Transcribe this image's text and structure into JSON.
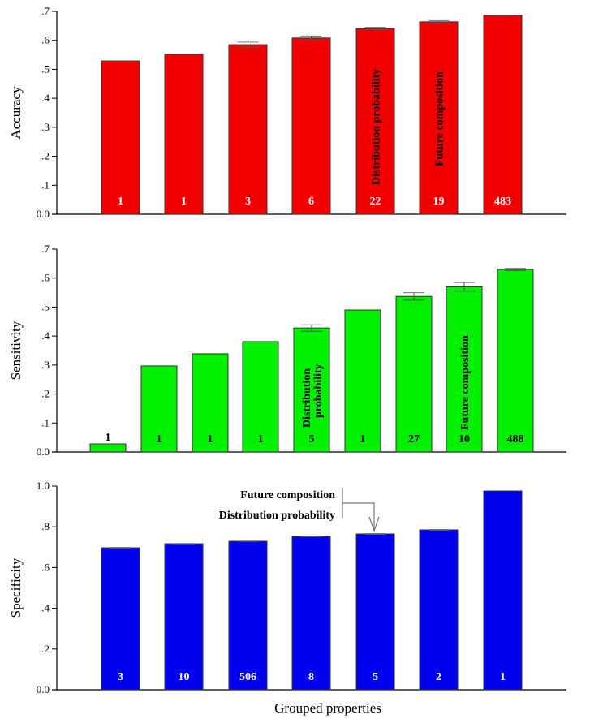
{
  "chart_data": [
    {
      "type": "bar",
      "title": "",
      "ylabel": "Accuracy",
      "xlabel": "",
      "ylim": [
        0,
        0.7
      ],
      "yticks": [
        "0.0",
        ".1",
        ".2",
        ".3",
        ".4",
        ".5",
        ".6",
        ".7"
      ],
      "color": "#f20000",
      "values": [
        0.529,
        0.552,
        0.585,
        0.608,
        0.641,
        0.664,
        0.686
      ],
      "errors": [
        0,
        0,
        0.009,
        0.007,
        0.004,
        0.004,
        0.001
      ],
      "counts": [
        "1",
        "1",
        "3",
        "6",
        "22",
        "19",
        "483"
      ],
      "count_color": "white",
      "annotations": [
        {
          "bar": 4,
          "text": "Distribution probability",
          "orientation": "vertical"
        },
        {
          "bar": 5,
          "text": "Future composition",
          "orientation": "vertical"
        }
      ]
    },
    {
      "type": "bar",
      "title": "",
      "ylabel": "Sensitivity",
      "xlabel": "",
      "ylim": [
        0,
        0.7
      ],
      "yticks": [
        "0.0",
        ".1",
        ".2",
        ".3",
        ".4",
        ".5",
        ".6",
        ".7"
      ],
      "color": "#00f000",
      "values": [
        0.028,
        0.297,
        0.339,
        0.381,
        0.428,
        0.49,
        0.537,
        0.57,
        0.63
      ],
      "errors": [
        0,
        0,
        0,
        0,
        0.011,
        0,
        0.013,
        0.015,
        0.004
      ],
      "counts": [
        "1",
        "1",
        "1",
        "1",
        "5",
        "1",
        "27",
        "10",
        "488"
      ],
      "count_color": "black",
      "annotations": [
        {
          "bar": 4,
          "text": "Distribution probability",
          "orientation": "vertical-two-line"
        },
        {
          "bar": 7,
          "text": "Future composition",
          "orientation": "vertical"
        }
      ]
    },
    {
      "type": "bar",
      "title": "",
      "ylabel": "Specificity",
      "xlabel": "Grouped properties",
      "ylim": [
        0,
        1.0
      ],
      "yticks": [
        "0.0",
        ".2",
        ".4",
        ".6",
        ".8",
        "1.0"
      ],
      "color": "#0000f0",
      "values": [
        0.697,
        0.717,
        0.729,
        0.753,
        0.765,
        0.785,
        0.976
      ],
      "errors": [
        0.002,
        0.001,
        0.001,
        0.002,
        0.002,
        0.002,
        0
      ],
      "counts": [
        "3",
        "10",
        "506",
        "8",
        "5",
        "2",
        "1"
      ],
      "count_color": "white",
      "annotations": [
        {
          "bar": 4,
          "text": "Future composition",
          "orientation": "callout-line-1"
        },
        {
          "bar": 4,
          "text": "Distribution probability",
          "orientation": "callout-line-2"
        }
      ]
    }
  ]
}
